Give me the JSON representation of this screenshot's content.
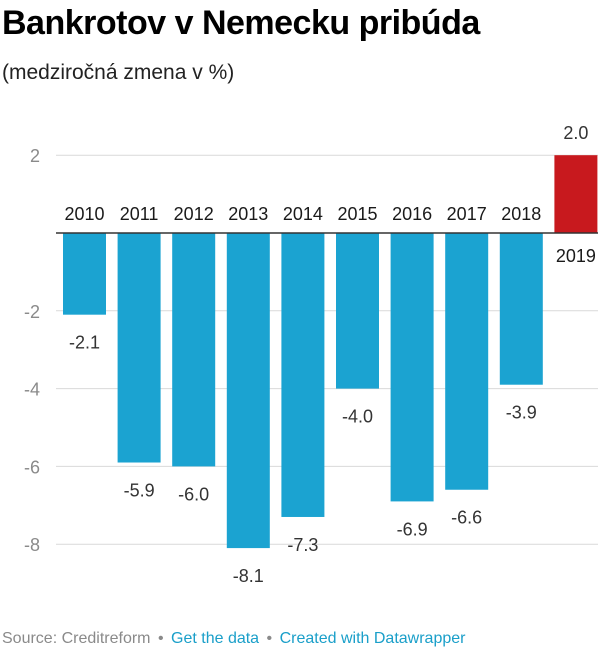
{
  "header": {
    "title": "Bankrotov v Nemecku pribúda",
    "subtitle": "(medziročná zmena v %)"
  },
  "footer": {
    "source": "Source: Creditreform",
    "separator": "•",
    "get_data": "Get the data",
    "created_with": "Created with Datawrapper"
  },
  "colors": {
    "negative": "#1ba3d1",
    "positive": "#c8191e",
    "grid": "#d9d9d9",
    "tick": "#8a8a8a",
    "label": "#333333"
  },
  "chart_data": {
    "type": "bar",
    "title": "Bankrotov v Nemecku pribúda",
    "subtitle": "(medziročná zmena v %)",
    "categories": [
      "2010",
      "2011",
      "2012",
      "2013",
      "2014",
      "2015",
      "2016",
      "2017",
      "2018",
      "2019"
    ],
    "values": [
      -2.1,
      -5.9,
      -6.0,
      -8.1,
      -7.3,
      -4.0,
      -6.9,
      -6.6,
      -3.9,
      2.0
    ],
    "value_labels": [
      "-2.1",
      "-5.9",
      "-6.0",
      "-8.1",
      "-7.3",
      "-4.0",
      "-6.9",
      "-6.6",
      "-3.9",
      "2.0"
    ],
    "yticks": [
      2,
      -2,
      -4,
      -6,
      -8
    ],
    "ylim": [
      -8.5,
      2.6
    ],
    "grid": true,
    "xlabel": "",
    "ylabel": ""
  }
}
